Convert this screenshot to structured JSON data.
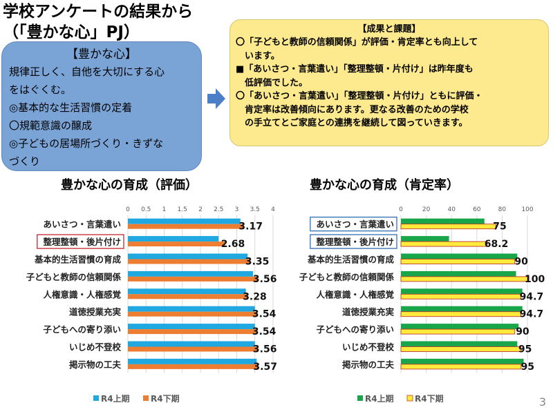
{
  "header": {
    "title_line1": "学校アンケートの結果から",
    "title_line2": "（「豊かな心」PJ）"
  },
  "goal_box": {
    "title": "【豊かな心】",
    "lines": [
      "規律正しく、自他を大切にする心",
      "をはぐくむ。",
      "◎基本的な生活習慣の定着",
      "〇規範意識の醸成",
      "◎子どもの居場所づくり・きずな",
      "づくり"
    ]
  },
  "result_box": {
    "title": "【成果と課題】",
    "lines": [
      "〇「子どもと教師の信頼関係」が評価・肯定率とも向上して",
      "　います。",
      "■「あいさつ・言葉遣い」「整理整頓・片付け」は昨年度も",
      "　低評価でした。",
      "〇「あいさつ・言葉遣い」「整理整頓・片付け」ともに評価・",
      "　肯定率は改善傾向にあります。更なる改善のための学校",
      "　の手立てとご家庭との連携を継続して図っていきます。"
    ]
  },
  "page_number": "3",
  "chart_data": [
    {
      "type": "bar",
      "orientation": "horizontal",
      "title": "豊かな心の育成（評価）",
      "categories": [
        "あいさつ・言葉遣い",
        "整理整頓・後片付け",
        "基本的生活習慣の育成",
        "子どもと教師の信頼関係",
        "人権意識・人権感覚",
        "道徳授業充実",
        "子どもへの寄り添い",
        "いじめ不登校",
        "掲示物の工夫"
      ],
      "highlighted": [
        "整理整頓・後片付け"
      ],
      "ticks": [
        "0",
        "0.5",
        "1",
        "1.5",
        "2",
        "2.5",
        "3",
        "3.5",
        "4"
      ],
      "xlim": [
        0,
        4
      ],
      "axis_position": "top",
      "series": [
        {
          "name": "R4上期",
          "color": "#1fa9e0",
          "values": [
            3.1,
            2.5,
            3.3,
            3.45,
            3.25,
            3.5,
            3.5,
            3.5,
            3.55
          ]
        },
        {
          "name": "R4下期",
          "color": "#ed7d31",
          "values": [
            3.17,
            2.68,
            3.35,
            3.56,
            3.28,
            3.54,
            3.54,
            3.56,
            3.57
          ]
        }
      ],
      "data_labels": [
        "3.17",
        "2.68",
        "3.35",
        "3.56",
        "3.28",
        "3.54",
        "3.54",
        "3.56",
        "3.57"
      ],
      "legend": "bottom"
    },
    {
      "type": "bar",
      "orientation": "horizontal",
      "title": "豊かな心の育成（肯定率）",
      "categories": [
        "あいさつ・言葉遣い",
        "整理整頓・後片付け",
        "基本的生活習慣の育成",
        "子どもと教師の信頼関係",
        "人権意識・人権感覚",
        "道徳授業充実",
        "子どもへの寄り添い",
        "いじめ不登校",
        "掲示物の工夫"
      ],
      "highlighted": [
        "あいさつ・言葉遣い",
        "整理整頓・後片付け"
      ],
      "ticks": [
        "0",
        "20",
        "40",
        "60",
        "80",
        "100"
      ],
      "xlim": [
        0,
        100
      ],
      "axis_position": "top",
      "series": [
        {
          "name": "R4上期",
          "color": "#19a64a",
          "values": [
            66,
            38,
            92,
            91,
            96,
            96,
            93,
            92,
            97
          ]
        },
        {
          "name": "R4下期",
          "color": "#ffeb3b",
          "values": [
            75,
            68.2,
            90,
            100,
            94.7,
            94.7,
            90,
            95,
            95
          ]
        }
      ],
      "data_labels": [
        "75",
        "68.2",
        "90",
        "100",
        "94.7",
        "94.7",
        "90",
        "95",
        "95"
      ],
      "legend": "bottom"
    }
  ]
}
